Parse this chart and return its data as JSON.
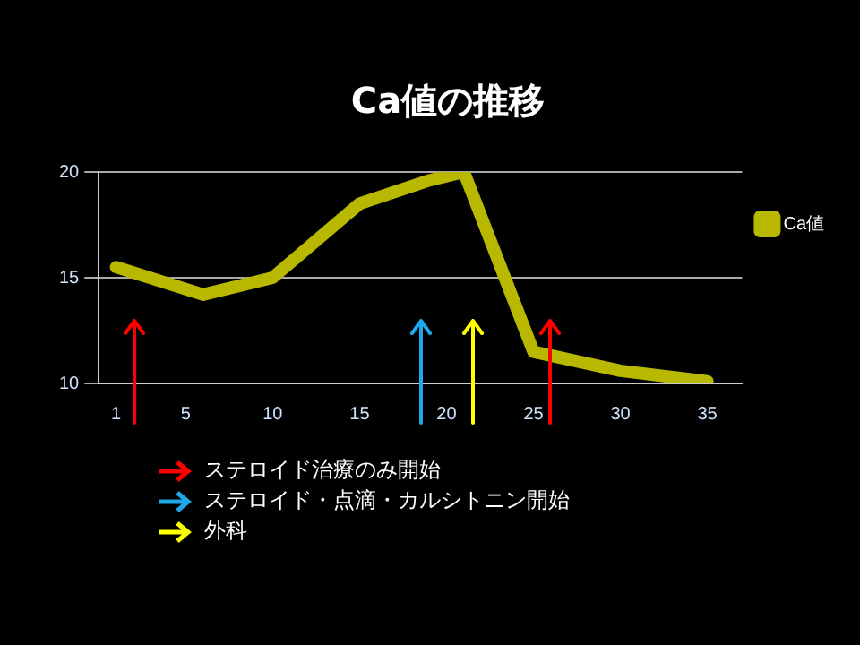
{
  "chart_data": {
    "type": "line",
    "title": "Ca値の推移",
    "x": [
      1,
      6,
      10,
      15,
      19,
      21,
      25,
      30,
      35
    ],
    "series": [
      {
        "name": "Ca値",
        "color": "#b8b800",
        "values": [
          15.5,
          14.2,
          15,
          18.5,
          19.6,
          20,
          11.5,
          10.6,
          10.1
        ]
      }
    ],
    "xlim": [
      0,
      37
    ],
    "xticks": [
      1,
      5,
      10,
      15,
      20,
      25,
      30,
      35
    ],
    "ylim": [
      10,
      20
    ],
    "yticks": [
      10,
      15,
      20
    ],
    "grid": "y",
    "legend": "right",
    "marker": "none",
    "line_style": "solid",
    "ref_lines": [
      {
        "axis": "x",
        "value": 2,
        "label": "ステロイド治療のみ開始",
        "color": "#ff0000"
      },
      {
        "axis": "x",
        "value": 18.5,
        "label": "ステロイド・点滴・カルシトニン開始",
        "color": "#1fa8e8"
      },
      {
        "axis": "x",
        "value": 21.5,
        "label": "外科",
        "color": "#ffff00"
      },
      {
        "axis": "x",
        "value": 26,
        "label": null,
        "color": "#ff0000"
      }
    ]
  }
}
